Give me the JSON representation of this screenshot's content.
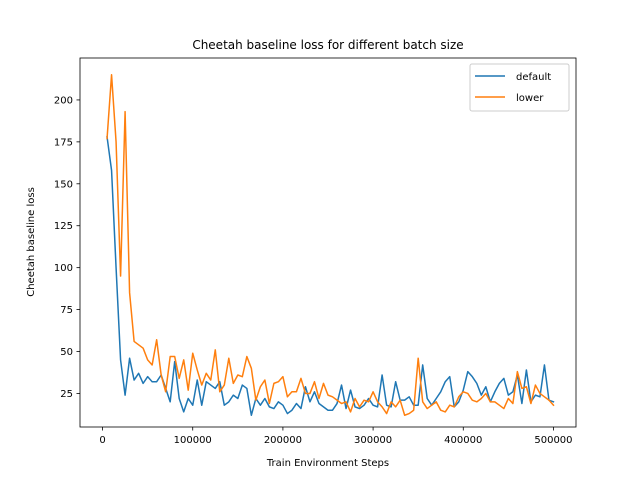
{
  "chart_data": {
    "type": "line",
    "title": "Cheetah baseline loss for different batch size",
    "xlabel": "Train Environment Steps",
    "ylabel": "Cheetah baseline loss",
    "xlim": [
      -25000,
      525000
    ],
    "ylim": [
      5,
      225
    ],
    "xticks": [
      0,
      100000,
      200000,
      300000,
      400000,
      500000
    ],
    "xtick_labels": [
      "0",
      "100000",
      "200000",
      "300000",
      "400000",
      "500000"
    ],
    "yticks": [
      25,
      50,
      75,
      100,
      125,
      150,
      175,
      200
    ],
    "ytick_labels": [
      "25",
      "50",
      "75",
      "100",
      "125",
      "150",
      "175",
      "200"
    ],
    "grid": false,
    "legend_position": "top-right",
    "series": [
      {
        "name": "default",
        "color": "#1f77b4",
        "x": [
          5000,
          10000,
          15000,
          20000,
          25000,
          30000,
          35000,
          40000,
          45000,
          50000,
          55000,
          60000,
          65000,
          70000,
          75000,
          80000,
          85000,
          90000,
          95000,
          100000,
          105000,
          110000,
          115000,
          120000,
          125000,
          130000,
          135000,
          140000,
          145000,
          150000,
          155000,
          160000,
          165000,
          170000,
          175000,
          180000,
          185000,
          190000,
          195000,
          200000,
          205000,
          210000,
          215000,
          220000,
          225000,
          230000,
          235000,
          240000,
          245000,
          250000,
          255000,
          260000,
          265000,
          270000,
          275000,
          280000,
          285000,
          290000,
          295000,
          300000,
          305000,
          310000,
          315000,
          320000,
          325000,
          330000,
          335000,
          340000,
          345000,
          350000,
          355000,
          360000,
          365000,
          370000,
          375000,
          380000,
          385000,
          390000,
          395000,
          400000,
          405000,
          410000,
          415000,
          420000,
          425000,
          430000,
          435000,
          440000,
          445000,
          450000,
          455000,
          460000,
          465000,
          470000,
          475000,
          480000,
          485000,
          490000,
          495000,
          500000
        ],
        "y": [
          178,
          158,
          100,
          45,
          24,
          46,
          33,
          37,
          31,
          35,
          32,
          32,
          36,
          28,
          20,
          44,
          22,
          14,
          22,
          18,
          33,
          18,
          32,
          30,
          28,
          32,
          18,
          20,
          24,
          22,
          30,
          28,
          12,
          22,
          18,
          22,
          17,
          16,
          20,
          18,
          13,
          15,
          19,
          16,
          29,
          20,
          26,
          19,
          17,
          15,
          15,
          19,
          30,
          16,
          27,
          17,
          16,
          18,
          22,
          18,
          17,
          36,
          18,
          17,
          32,
          21,
          21,
          23,
          18,
          18,
          42,
          22,
          18,
          22,
          26,
          32,
          35,
          17,
          20,
          27,
          38,
          35,
          31,
          24,
          29,
          20,
          26,
          31,
          34,
          24,
          26,
          36,
          19,
          39,
          20,
          24,
          23,
          42,
          21,
          20
        ]
      },
      {
        "name": "lower",
        "color": "#ff7f0e",
        "x": [
          5000,
          10000,
          15000,
          20000,
          25000,
          30000,
          35000,
          40000,
          45000,
          50000,
          55000,
          60000,
          65000,
          70000,
          75000,
          80000,
          85000,
          90000,
          95000,
          100000,
          105000,
          110000,
          115000,
          120000,
          125000,
          130000,
          135000,
          140000,
          145000,
          150000,
          155000,
          160000,
          165000,
          170000,
          175000,
          180000,
          185000,
          190000,
          195000,
          200000,
          205000,
          210000,
          215000,
          220000,
          225000,
          230000,
          235000,
          240000,
          245000,
          250000,
          255000,
          260000,
          265000,
          270000,
          275000,
          280000,
          285000,
          290000,
          295000,
          300000,
          305000,
          310000,
          315000,
          320000,
          325000,
          330000,
          335000,
          340000,
          345000,
          350000,
          355000,
          360000,
          365000,
          370000,
          375000,
          380000,
          385000,
          390000,
          395000,
          400000,
          405000,
          410000,
          415000,
          420000,
          425000,
          430000,
          435000,
          440000,
          445000,
          450000,
          455000,
          460000,
          465000,
          470000,
          475000,
          480000,
          485000,
          490000,
          495000,
          500000
        ],
        "y": [
          177,
          215,
          175,
          95,
          193,
          85,
          56,
          54,
          52,
          45,
          42,
          57,
          36,
          26,
          47,
          47,
          34,
          45,
          27,
          49,
          39,
          30,
          37,
          33,
          51,
          26,
          30,
          46,
          31,
          36,
          35,
          47,
          40,
          21,
          29,
          33,
          19,
          31,
          32,
          35,
          23,
          26,
          26,
          34,
          25,
          25,
          32,
          22,
          31,
          24,
          23,
          21,
          19,
          20,
          14,
          22,
          17,
          21,
          20,
          26,
          20,
          17,
          13,
          20,
          17,
          21,
          12,
          13,
          15,
          46,
          20,
          16,
          18,
          20,
          15,
          14,
          18,
          17,
          23,
          26,
          25,
          21,
          20,
          22,
          25,
          20,
          20,
          18,
          16,
          22,
          19,
          38,
          28,
          29,
          19,
          30,
          25,
          23,
          21,
          18
        ]
      }
    ]
  }
}
